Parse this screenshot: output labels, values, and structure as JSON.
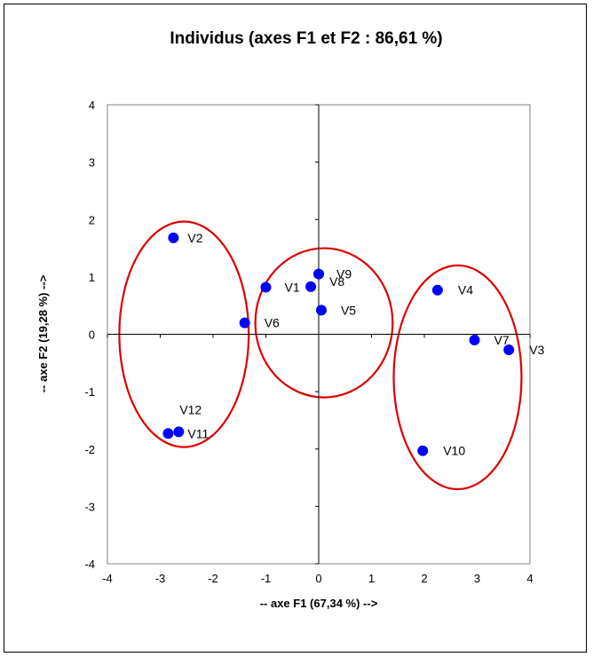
{
  "chart_data": {
    "type": "scatter",
    "title": "Individus (axes F1 et F2 : 86,61 %)",
    "xlabel": "-- axe F1 (67,34 %) -->",
    "ylabel": "-- axe F2 (19,28 %) -->",
    "xlim": [
      -4,
      4
    ],
    "ylim": [
      -4,
      4
    ],
    "xticks": [
      "-4",
      "-3",
      "-2",
      "-1",
      "0",
      "1",
      "2",
      "3",
      "4"
    ],
    "yticks": [
      "4",
      "3",
      "2",
      "1",
      "0",
      "-1",
      "-2",
      "-3",
      "-4"
    ],
    "grid": false,
    "point_color": "#0000ff",
    "group_color": "#dd0000",
    "points": [
      {
        "label": "V2",
        "x": -2.75,
        "y": 1.68
      },
      {
        "label": "V1",
        "x": -1.0,
        "y": 0.82
      },
      {
        "label": "V8",
        "x": -0.15,
        "y": 0.83
      },
      {
        "label": "V9",
        "x": 0.0,
        "y": 1.05
      },
      {
        "label": "V5",
        "x": 0.05,
        "y": 0.42
      },
      {
        "label": "V6",
        "x": -1.4,
        "y": 0.2
      },
      {
        "label": "V4",
        "x": 2.25,
        "y": 0.77
      },
      {
        "label": "V7",
        "x": 2.95,
        "y": -0.1
      },
      {
        "label": "V3",
        "x": 3.6,
        "y": -0.27
      },
      {
        "label": "V12",
        "x": -2.65,
        "y": -1.7
      },
      {
        "label": "V11",
        "x": -2.85,
        "y": -1.73
      },
      {
        "label": "V10",
        "x": 1.97,
        "y": -2.03
      }
    ]
  }
}
